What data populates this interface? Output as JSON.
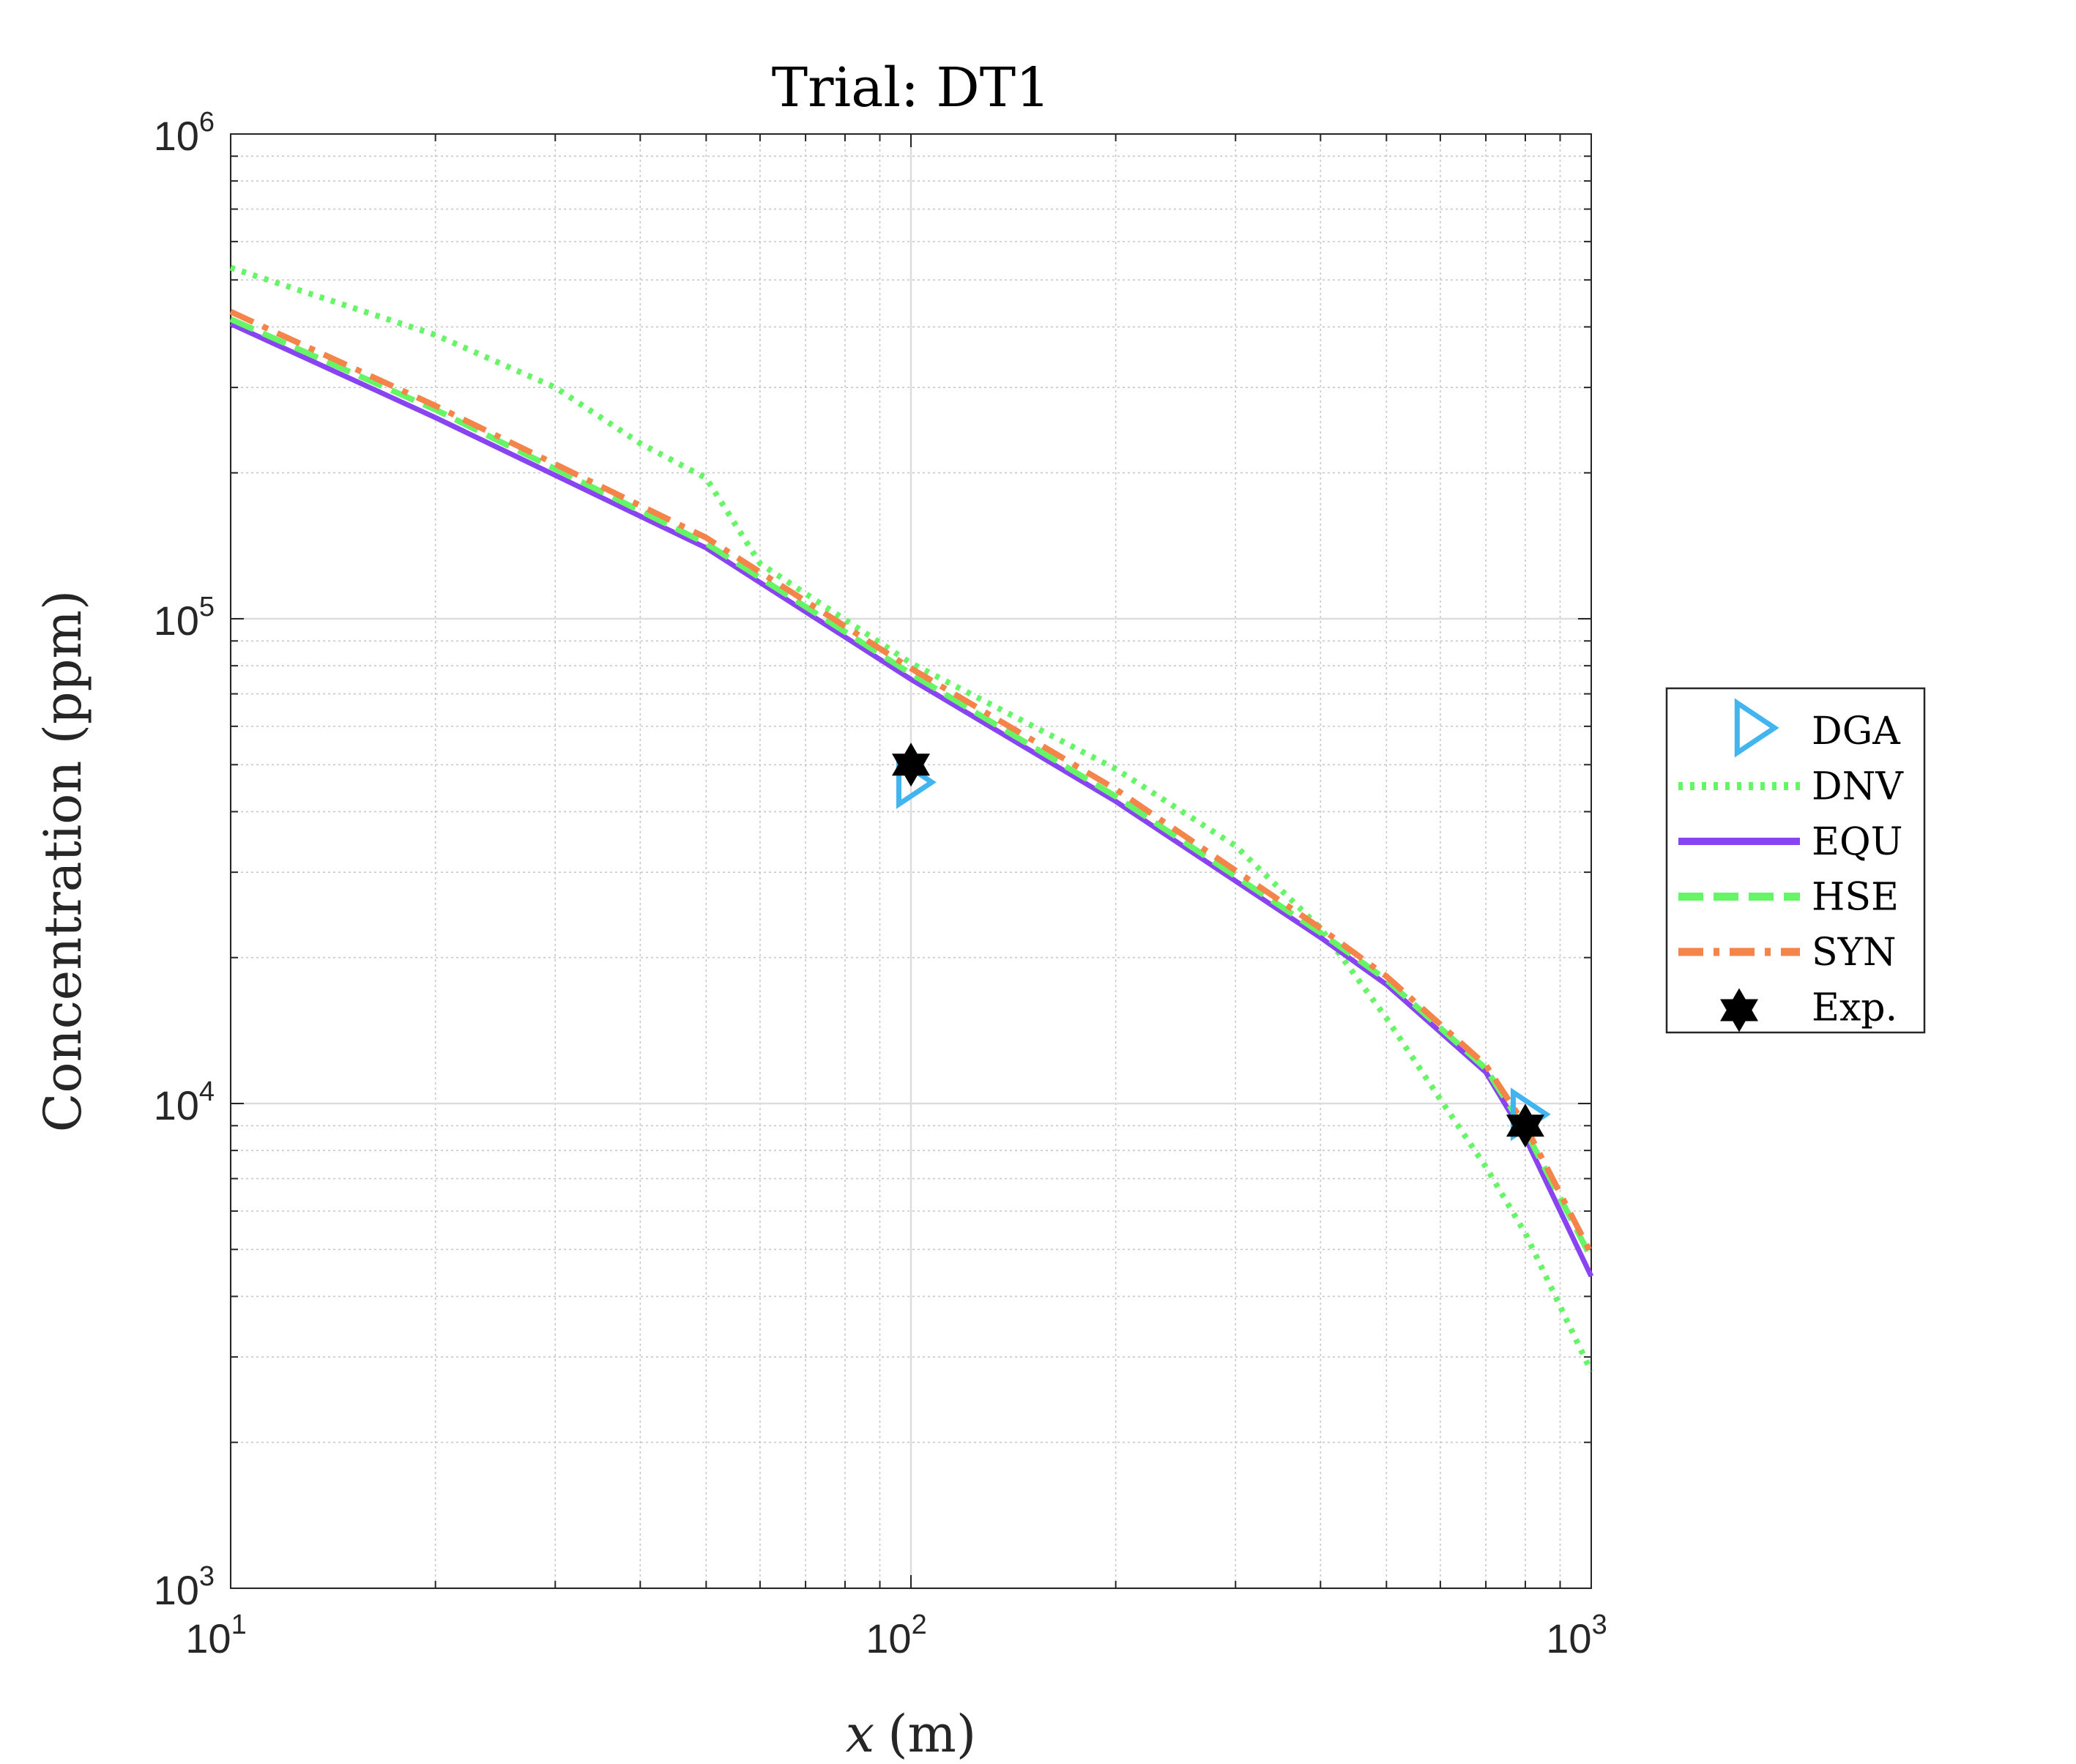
{
  "chart_data": {
    "type": "line",
    "title": "Trial:  DT1",
    "xlabel": "x (m)",
    "xlabel_var": "x",
    "xlabel_unit": "(m)",
    "ylabel": "Concentration (ppm)",
    "xscale": "log",
    "yscale": "log",
    "xlim": [
      10,
      1000
    ],
    "ylim": [
      1000,
      1000000
    ],
    "xticks": [
      {
        "base": "10",
        "exp": "1",
        "value": 10
      },
      {
        "base": "10",
        "exp": "2",
        "value": 100
      },
      {
        "base": "10",
        "exp": "3",
        "value": 1000
      }
    ],
    "yticks": [
      {
        "base": "10",
        "exp": "3",
        "value": 1000
      },
      {
        "base": "10",
        "exp": "4",
        "value": 10000
      },
      {
        "base": "10",
        "exp": "5",
        "value": 100000
      },
      {
        "base": "10",
        "exp": "6",
        "value": 1000000
      }
    ],
    "grid": true,
    "minor_grid": true,
    "legend_position": "outside-right",
    "series": [
      {
        "name": "DGA",
        "kind": "marker",
        "marker": "triangle-right",
        "color": "#42b4ef",
        "x": [
          100,
          800
        ],
        "y": [
          46000,
          9500
        ]
      },
      {
        "name": "DNV",
        "kind": "line",
        "style": "dotted",
        "color": "#66f566",
        "x": [
          10,
          20,
          30,
          40,
          50,
          60,
          100,
          200,
          300,
          400,
          500,
          600,
          700,
          800,
          1000
        ],
        "y": [
          530000,
          385000,
          300000,
          230000,
          195000,
          130000,
          81000,
          49000,
          34000,
          23000,
          15000,
          10200,
          7400,
          5400,
          2800
        ]
      },
      {
        "name": "EQU",
        "kind": "line",
        "style": "solid",
        "color": "#8844f0",
        "x": [
          10,
          20,
          50,
          100,
          200,
          400,
          500,
          700,
          800,
          1000
        ],
        "y": [
          406000,
          260000,
          140000,
          75000,
          42000,
          22000,
          17600,
          11600,
          8500,
          4400
        ]
      },
      {
        "name": "HSE",
        "kind": "line",
        "style": "dashed",
        "color": "#66f566",
        "x": [
          10,
          20,
          50,
          100,
          200,
          400,
          500,
          700,
          800,
          1000
        ],
        "y": [
          415000,
          270000,
          143000,
          77000,
          43000,
          22500,
          18000,
          11800,
          8800,
          4800
        ]
      },
      {
        "name": "SYN",
        "kind": "line",
        "style": "dashdot",
        "color": "#f4844a",
        "x": [
          10,
          20,
          50,
          100,
          200,
          400,
          500,
          700,
          800,
          1000
        ],
        "y": [
          430000,
          275000,
          147000,
          79000,
          44500,
          23000,
          18300,
          12000,
          9000,
          4900
        ]
      },
      {
        "name": "Exp.",
        "kind": "marker",
        "marker": "hexagram",
        "color": "#000000",
        "x": [
          100,
          800
        ],
        "y": [
          50000,
          9000
        ]
      }
    ]
  }
}
